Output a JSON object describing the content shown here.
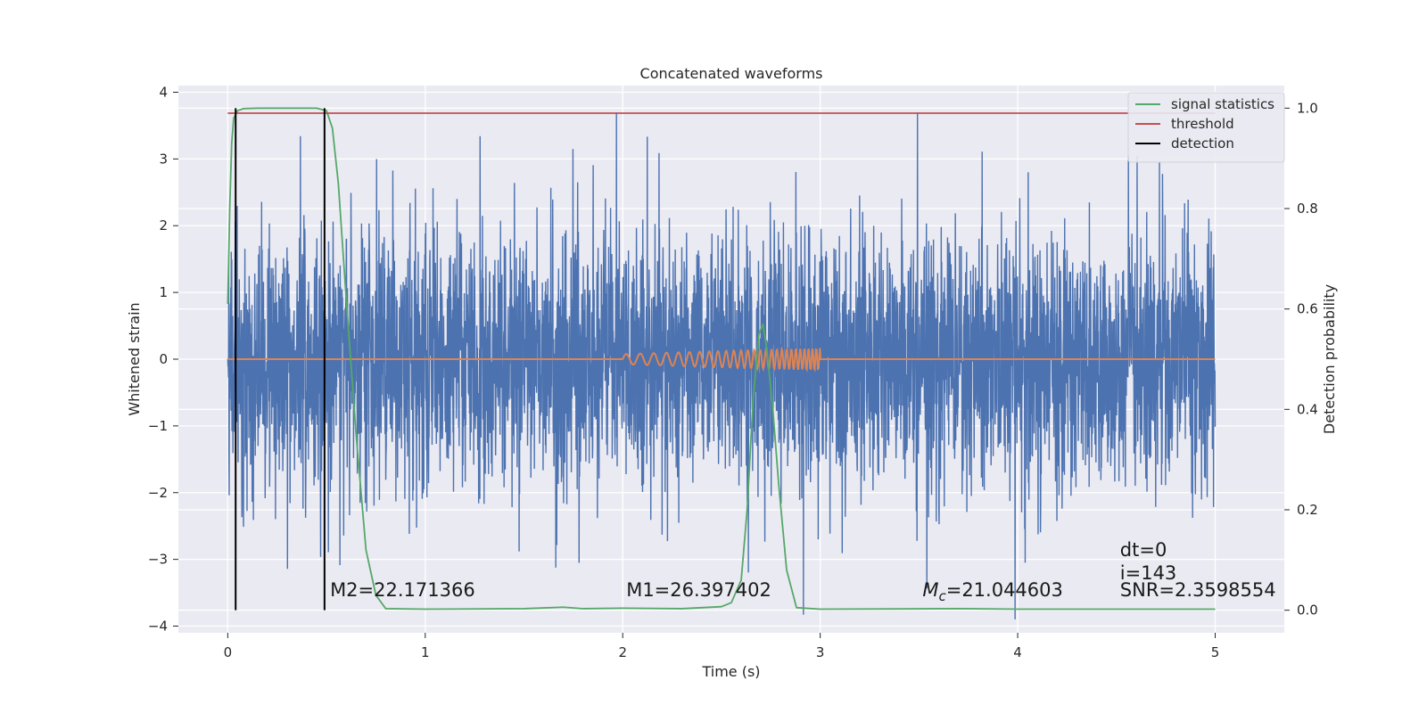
{
  "chart_data": {
    "type": "line",
    "title": "Concatenated waveforms",
    "xlabel": "Time (s)",
    "ylabel": "Whitened strain",
    "ylabel_right": "Detection probability",
    "xlim": [
      -0.25,
      5.35
    ],
    "ylim": [
      -4.1,
      4.1
    ],
    "ylim_right": [
      -0.045,
      1.045
    ],
    "x_ticks": [
      0,
      1,
      2,
      3,
      4,
      5
    ],
    "x_tick_labels": [
      "0",
      "1",
      "2",
      "3",
      "4",
      "5"
    ],
    "y_ticks": [
      -4,
      -3,
      -2,
      -1,
      0,
      1,
      2,
      3,
      4
    ],
    "y_tick_labels": [
      "−4",
      "−3",
      "−2",
      "−1",
      "0",
      "1",
      "2",
      "3",
      "4"
    ],
    "y_right_ticks": [
      0.0,
      0.2,
      0.4,
      0.6,
      0.8,
      1.0
    ],
    "y_right_tick_labels": [
      "0.0",
      "0.2",
      "0.4",
      "0.6",
      "0.8",
      "1.0"
    ],
    "grid": true,
    "legend_placement": "top-right",
    "series": [
      {
        "name": "signal statistics",
        "axis": "right",
        "color": "#55a868",
        "x": [
          0.0,
          0.01,
          0.02,
          0.03,
          0.05,
          0.08,
          0.15,
          0.3,
          0.45,
          0.5,
          0.53,
          0.56,
          0.6,
          0.65,
          0.7,
          0.75,
          0.8,
          1.0,
          1.5,
          1.7,
          1.8,
          2.0,
          2.3,
          2.5,
          2.55,
          2.6,
          2.63,
          2.66,
          2.69,
          2.71,
          2.73,
          2.76,
          2.79,
          2.83,
          2.88,
          3.0,
          3.7,
          4.0,
          4.5,
          5.0
        ],
        "y": [
          0.61,
          0.8,
          0.93,
          0.98,
          0.995,
          0.999,
          1.0,
          1.0,
          1.0,
          0.995,
          0.96,
          0.85,
          0.62,
          0.35,
          0.12,
          0.03,
          0.003,
          0.002,
          0.003,
          0.006,
          0.003,
          0.004,
          0.003,
          0.007,
          0.015,
          0.06,
          0.2,
          0.42,
          0.55,
          0.57,
          0.52,
          0.4,
          0.25,
          0.08,
          0.005,
          0.002,
          0.003,
          0.002,
          0.002,
          0.002
        ]
      },
      {
        "name": "threshold",
        "axis": "right",
        "color": "#c44e52",
        "x": [
          0,
          5
        ],
        "y": [
          0.99,
          0.99
        ]
      },
      {
        "name": "detection",
        "axis": "right",
        "color": "#000000",
        "type": "vlines",
        "x": [
          0.04,
          0.49
        ],
        "y_range": [
          0.0,
          1.0
        ]
      },
      {
        "axis": "left",
        "type": "noise",
        "color": "#4c72b0",
        "x_range": [
          0,
          5
        ],
        "amplitude_range": [
          -3.9,
          3.7
        ]
      },
      {
        "axis": "left",
        "type": "waveform",
        "color": "#dd8452",
        "x_range": [
          0,
          5
        ],
        "chirp_range": [
          2,
          3
        ],
        "amplitude_range": [
          -0.17,
          0.17
        ]
      }
    ],
    "annotations": [
      {
        "text": "M2=22.171366",
        "x": 0.5,
        "y": -3.55
      },
      {
        "text": "M1=26.397402",
        "x": 2.0,
        "y": -3.55
      },
      {
        "text_math": "M",
        "text_sub": "c",
        "text_rest": "=21.044603",
        "x": 3.5,
        "y": -3.55
      },
      {
        "text": "dt=0",
        "x": 4.5,
        "y": -2.95
      },
      {
        "text": "i=143",
        "x": 4.5,
        "y": -3.3
      },
      {
        "text": "SNR=2.3598554",
        "x": 4.5,
        "y": -3.55
      }
    ]
  }
}
